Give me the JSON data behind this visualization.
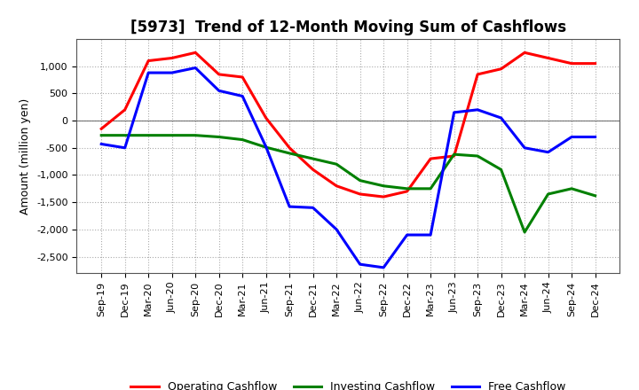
{
  "title": "[5973]  Trend of 12-Month Moving Sum of Cashflows",
  "ylabel": "Amount (million yen)",
  "background_color": "#ffffff",
  "grid_color": "#aaaaaa",
  "x_labels": [
    "Sep-19",
    "Dec-19",
    "Mar-20",
    "Jun-20",
    "Sep-20",
    "Dec-20",
    "Mar-21",
    "Jun-21",
    "Sep-21",
    "Dec-21",
    "Mar-22",
    "Jun-22",
    "Sep-22",
    "Dec-22",
    "Mar-23",
    "Jun-23",
    "Sep-23",
    "Dec-23",
    "Mar-24",
    "Jun-24",
    "Sep-24",
    "Dec-24"
  ],
  "operating_cashflow": [
    -150,
    200,
    1100,
    1150,
    1250,
    850,
    800,
    50,
    -500,
    -900,
    -1200,
    -1350,
    -1400,
    -1300,
    -700,
    -650,
    850,
    950,
    1250,
    1150,
    1050,
    1050
  ],
  "investing_cashflow": [
    -270,
    -270,
    -270,
    -270,
    -270,
    -300,
    -350,
    -490,
    -600,
    -700,
    -800,
    -1100,
    -1200,
    -1250,
    -1250,
    -620,
    -650,
    -900,
    -2050,
    -1350,
    -1250,
    -1380
  ],
  "free_cashflow": [
    -430,
    -500,
    880,
    880,
    970,
    550,
    450,
    -480,
    -1580,
    -1600,
    -2000,
    -2640,
    -2700,
    -2100,
    -2100,
    150,
    200,
    50,
    -500,
    -580,
    -300,
    -300
  ],
  "operating_color": "#ff0000",
  "investing_color": "#008000",
  "free_color": "#0000ff",
  "ylim": [
    -2800,
    1500
  ],
  "yticks": [
    -2500,
    -2000,
    -1500,
    -1000,
    -500,
    0,
    500,
    1000
  ],
  "line_width": 2.2,
  "title_fontsize": 12,
  "tick_fontsize": 8,
  "ylabel_fontsize": 9,
  "legend_fontsize": 9
}
